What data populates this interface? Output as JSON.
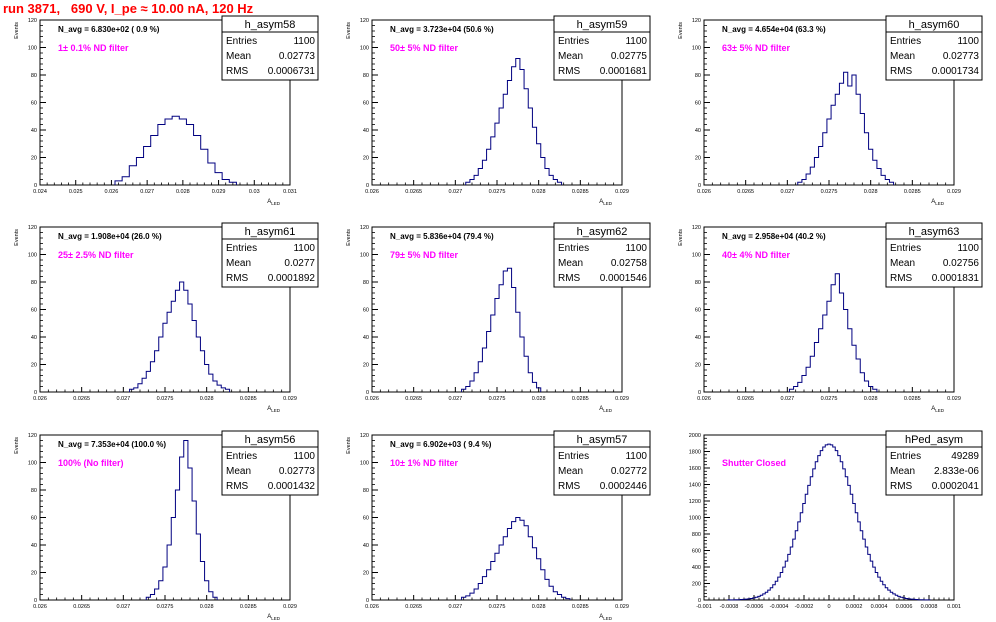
{
  "header": {
    "run_title": "run 3871,   690 V, I_pe ≈ 10.00 nA, 120 Hz"
  },
  "colors": {
    "histogram": "#000080",
    "annotation": "#ff00ff",
    "title": "#ff0000",
    "axis": "#000000"
  },
  "chart_data": [
    {
      "type": "histogram",
      "name": "h_asym58",
      "navg": "N_avg = 6.830e+02 ( 0.9 %)",
      "annotation": "1± 0.1% ND filter",
      "stats": {
        "Entries": "1100",
        "Mean": "0.02773",
        "RMS": "0.0006731"
      },
      "ylabel": "Events",
      "xlabel": "A",
      "xlim": [
        0.024,
        0.031
      ],
      "ylim": [
        0,
        120
      ],
      "xticks": [
        "0.024",
        "0.025",
        "0.026",
        "0.027",
        "0.028",
        "0.029",
        "0.03",
        "0.031"
      ],
      "yticks": [
        "0",
        "20",
        "40",
        "60",
        "80",
        "100",
        "120"
      ],
      "centers": [
        0.0262,
        0.0264,
        0.0266,
        0.0268,
        0.027,
        0.0272,
        0.0274,
        0.0276,
        0.0278,
        0.028,
        0.0282,
        0.0284,
        0.0286,
        0.0288,
        0.029,
        0.0292,
        0.0294
      ],
      "counts": [
        3,
        6,
        14,
        20,
        28,
        36,
        44,
        48,
        50,
        48,
        44,
        36,
        26,
        16,
        9,
        4,
        2
      ]
    },
    {
      "type": "histogram",
      "name": "h_asym59",
      "navg": "N_avg = 3.723e+04 (50.6 %)",
      "annotation": "50± 5% ND filter",
      "stats": {
        "Entries": "1100",
        "Mean": "0.02775",
        "RMS": "0.0001681"
      },
      "ylabel": "Events",
      "xlabel": "A",
      "xlim": [
        0.026,
        0.029
      ],
      "ylim": [
        0,
        120
      ],
      "xticks": [
        "0.026",
        "0.0265",
        "0.027",
        "0.0275",
        "0.028",
        "0.0285",
        "0.029"
      ],
      "yticks": [
        "0",
        "20",
        "40",
        "60",
        "80",
        "100",
        "120"
      ],
      "centers": [
        0.02715,
        0.0272,
        0.02725,
        0.0273,
        0.02735,
        0.0274,
        0.02745,
        0.0275,
        0.02755,
        0.0276,
        0.02765,
        0.0277,
        0.02775,
        0.0278,
        0.02785,
        0.0279,
        0.02795,
        0.028,
        0.02805,
        0.0281,
        0.02815,
        0.0282,
        0.02825
      ],
      "counts": [
        2,
        4,
        7,
        12,
        18,
        26,
        35,
        45,
        56,
        66,
        76,
        86,
        92,
        84,
        70,
        56,
        42,
        30,
        20,
        12,
        7,
        4,
        2
      ]
    },
    {
      "type": "histogram",
      "name": "h_asym60",
      "navg": "N_avg = 4.654e+04 (63.3 %)",
      "annotation": "63± 5% ND filter",
      "stats": {
        "Entries": "1100",
        "Mean": "0.02773",
        "RMS": "0.0001734"
      },
      "ylabel": "Events",
      "xlabel": "A",
      "xlim": [
        0.026,
        0.029
      ],
      "ylim": [
        0,
        120
      ],
      "xticks": [
        "0.026",
        "0.0265",
        "0.027",
        "0.0275",
        "0.028",
        "0.0285",
        "0.029"
      ],
      "yticks": [
        "0",
        "20",
        "40",
        "60",
        "80",
        "100",
        "120"
      ],
      "centers": [
        0.02715,
        0.0272,
        0.02725,
        0.0273,
        0.02735,
        0.0274,
        0.02745,
        0.0275,
        0.02755,
        0.0276,
        0.02765,
        0.0277,
        0.02775,
        0.0278,
        0.02785,
        0.0279,
        0.02795,
        0.028,
        0.02805,
        0.0281,
        0.02815,
        0.0282,
        0.02825
      ],
      "counts": [
        2,
        4,
        8,
        13,
        20,
        28,
        38,
        48,
        58,
        66,
        74,
        82,
        72,
        80,
        66,
        52,
        38,
        26,
        18,
        12,
        7,
        4,
        2
      ]
    },
    {
      "type": "histogram",
      "name": "h_asym61",
      "navg": "N_avg = 1.908e+04 (26.0 %)",
      "annotation": "25± 2.5% ND filter",
      "stats": {
        "Entries": "1100",
        "Mean": "0.0277",
        "RMS": "0.0001892"
      },
      "ylabel": "Events",
      "xlabel": "A",
      "xlim": [
        0.026,
        0.029
      ],
      "ylim": [
        0,
        120
      ],
      "xticks": [
        "0.026",
        "0.0265",
        "0.027",
        "0.0275",
        "0.028",
        "0.0285",
        "0.029"
      ],
      "yticks": [
        "0",
        "20",
        "40",
        "60",
        "80",
        "100",
        "120"
      ],
      "centers": [
        0.0271,
        0.02715,
        0.0272,
        0.02725,
        0.0273,
        0.02735,
        0.0274,
        0.02745,
        0.0275,
        0.02755,
        0.0276,
        0.02765,
        0.0277,
        0.02775,
        0.0278,
        0.02785,
        0.0279,
        0.02795,
        0.028,
        0.02805,
        0.0281,
        0.02815,
        0.0282,
        0.02825
      ],
      "counts": [
        2,
        3,
        6,
        10,
        15,
        22,
        30,
        40,
        50,
        58,
        66,
        74,
        80,
        74,
        64,
        52,
        40,
        30,
        20,
        13,
        8,
        5,
        3,
        2
      ]
    },
    {
      "type": "histogram",
      "name": "h_asym62",
      "navg": "N_avg = 5.836e+04 (79.4 %)",
      "annotation": "79± 5% ND filter",
      "stats": {
        "Entries": "1100",
        "Mean": "0.02758",
        "RMS": "0.0001546"
      },
      "ylabel": "Events",
      "xlabel": "A",
      "xlim": [
        0.026,
        0.029
      ],
      "ylim": [
        0,
        120
      ],
      "xticks": [
        "0.026",
        "0.0265",
        "0.027",
        "0.0275",
        "0.028",
        "0.0285",
        "0.029"
      ],
      "yticks": [
        "0",
        "20",
        "40",
        "60",
        "80",
        "100",
        "120"
      ],
      "centers": [
        0.0271,
        0.02715,
        0.0272,
        0.02725,
        0.0273,
        0.02735,
        0.0274,
        0.02745,
        0.0275,
        0.02755,
        0.0276,
        0.02765,
        0.0277,
        0.02775,
        0.0278,
        0.02785,
        0.0279,
        0.02795,
        0.028
      ],
      "counts": [
        2,
        4,
        8,
        14,
        22,
        32,
        44,
        56,
        68,
        78,
        88,
        90,
        76,
        58,
        40,
        26,
        14,
        7,
        3
      ]
    },
    {
      "type": "histogram",
      "name": "h_asym63",
      "navg": "N_avg = 2.958e+04 (40.2 %)",
      "annotation": "40± 4% ND filter",
      "stats": {
        "Entries": "1100",
        "Mean": "0.02756",
        "RMS": "0.0001831"
      },
      "ylabel": "Events",
      "xlabel": "A",
      "xlim": [
        0.026,
        0.029
      ],
      "ylim": [
        0,
        120
      ],
      "xticks": [
        "0.026",
        "0.0265",
        "0.027",
        "0.0275",
        "0.028",
        "0.0285",
        "0.029"
      ],
      "yticks": [
        "0",
        "20",
        "40",
        "60",
        "80",
        "100",
        "120"
      ],
      "centers": [
        0.02705,
        0.0271,
        0.02715,
        0.0272,
        0.02725,
        0.0273,
        0.02735,
        0.0274,
        0.02745,
        0.0275,
        0.02755,
        0.0276,
        0.02765,
        0.0277,
        0.02775,
        0.0278,
        0.02785,
        0.0279,
        0.02795,
        0.028,
        0.02805
      ],
      "counts": [
        2,
        4,
        7,
        12,
        18,
        26,
        36,
        46,
        56,
        66,
        78,
        86,
        72,
        60,
        46,
        34,
        24,
        14,
        8,
        4,
        2
      ]
    },
    {
      "type": "histogram",
      "name": "h_asym56",
      "navg": "N_avg = 7.353e+04 (100.0 %)",
      "annotation": "100% (No filter)",
      "stats": {
        "Entries": "1100",
        "Mean": "0.02773",
        "RMS": "0.0001432"
      },
      "ylabel": "Events",
      "xlabel": "A",
      "xlim": [
        0.026,
        0.029
      ],
      "ylim": [
        0,
        120
      ],
      "xticks": [
        "0.026",
        "0.0265",
        "0.027",
        "0.0275",
        "0.028",
        "0.0285",
        "0.029"
      ],
      "yticks": [
        "0",
        "20",
        "40",
        "60",
        "80",
        "100",
        "120"
      ],
      "centers": [
        0.0273,
        0.02735,
        0.0274,
        0.02745,
        0.0275,
        0.02755,
        0.0276,
        0.02765,
        0.0277,
        0.02775,
        0.0278,
        0.02785,
        0.0279,
        0.02795,
        0.028,
        0.02805,
        0.0281
      ],
      "counts": [
        2,
        4,
        8,
        14,
        24,
        40,
        60,
        80,
        104,
        116,
        96,
        72,
        48,
        28,
        14,
        6,
        2
      ]
    },
    {
      "type": "histogram",
      "name": "h_asym57",
      "navg": "N_avg = 6.902e+03 ( 9.4 %)",
      "annotation": "10± 1% ND filter",
      "stats": {
        "Entries": "1100",
        "Mean": "0.02772",
        "RMS": "0.0002446"
      },
      "ylabel": "Events",
      "xlabel": "A",
      "xlim": [
        0.026,
        0.029
      ],
      "ylim": [
        0,
        120
      ],
      "xticks": [
        "0.026",
        "0.0265",
        "0.027",
        "0.0275",
        "0.028",
        "0.0285",
        "0.029"
      ],
      "yticks": [
        "0",
        "20",
        "40",
        "60",
        "80",
        "100",
        "120"
      ],
      "centers": [
        0.0271,
        0.02715,
        0.0272,
        0.02725,
        0.0273,
        0.02735,
        0.0274,
        0.02745,
        0.0275,
        0.02755,
        0.0276,
        0.02765,
        0.0277,
        0.02775,
        0.0278,
        0.02785,
        0.0279,
        0.02795,
        0.028,
        0.02805,
        0.0281,
        0.02815,
        0.0282,
        0.02825,
        0.0283,
        0.02835
      ],
      "counts": [
        2,
        3,
        5,
        8,
        12,
        17,
        22,
        28,
        34,
        40,
        46,
        52,
        57,
        60,
        58,
        54,
        46,
        38,
        30,
        22,
        15,
        10,
        6,
        4,
        2,
        1
      ]
    },
    {
      "type": "histogram",
      "name": "hPed_asym",
      "navg": "",
      "annotation": "Shutter Closed",
      "stats": {
        "Entries": "49289",
        "Mean": "2.833e-06",
        "RMS": "0.0002041"
      },
      "ylabel": "",
      "xlabel": "",
      "xlim": [
        -0.001,
        0.001
      ],
      "ylim": [
        0,
        2000
      ],
      "xticks": [
        "-0.001",
        "-0.0008",
        "-0.0006",
        "-0.0004",
        "-0.0002",
        "0",
        "0.0002",
        "0.0004",
        "0.0006",
        "0.0008",
        "0.001"
      ],
      "yticks": [
        "0",
        "200",
        "400",
        "600",
        "800",
        "1000",
        "1200",
        "1400",
        "1600",
        "1800",
        "2000"
      ],
      "mu": 0.0,
      "sigma": 0.0002041,
      "peak": 1890,
      "binwidth": 2e-05,
      "range": [
        -0.0008,
        0.0008
      ]
    }
  ]
}
